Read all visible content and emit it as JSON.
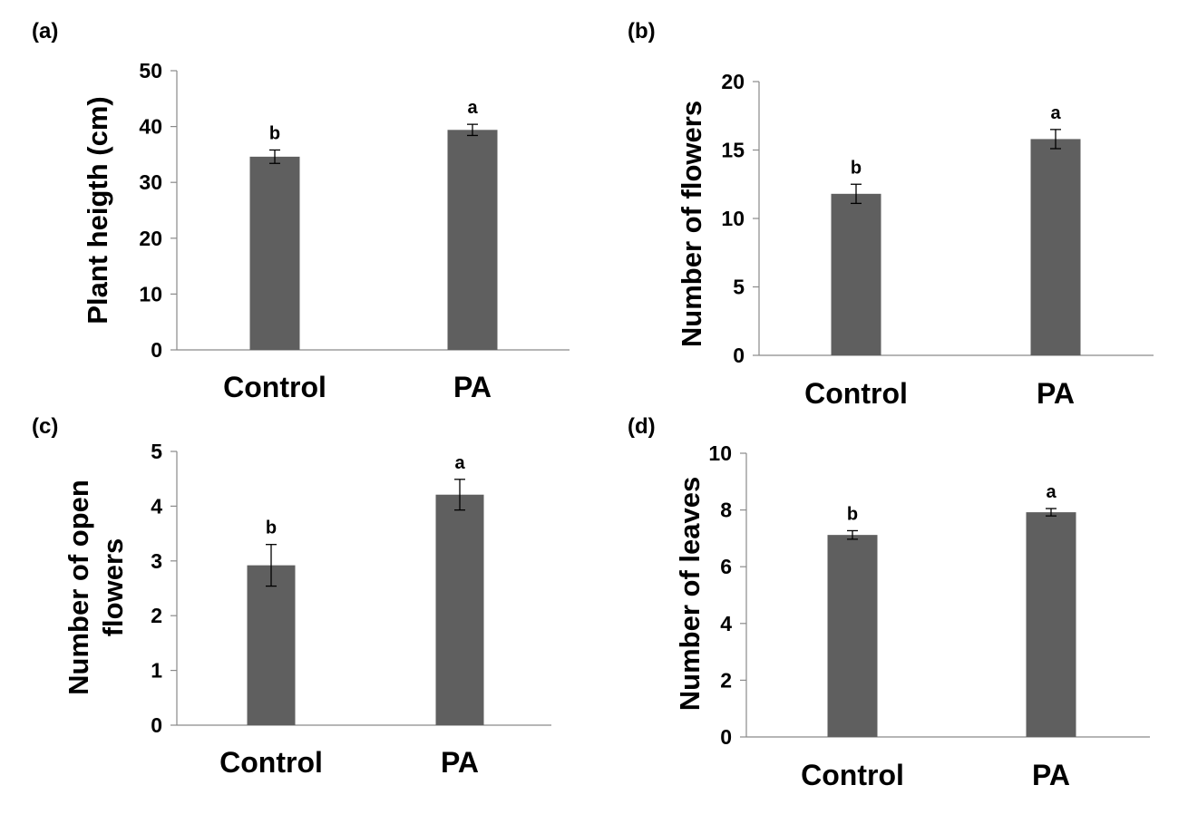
{
  "colors": {
    "bar": "#5f5f5f",
    "axis": "#8a8a8a",
    "text": "#000000",
    "background": "#ffffff"
  },
  "chart_data": [
    {
      "type": "bar",
      "panel_label": "(a)",
      "title": "",
      "xlabel": "",
      "ylabel": "Plant heigth (cm)",
      "categories": [
        "Control",
        "PA"
      ],
      "values": [
        34.6,
        39.4
      ],
      "errors": [
        1.2,
        1.0
      ],
      "significance": [
        "b",
        "a"
      ],
      "ylim": [
        0,
        50
      ],
      "yticks": [
        0,
        10,
        20,
        30,
        40,
        50
      ],
      "ytick_labels": [
        "0",
        "10",
        "20",
        "30",
        "40",
        "50"
      ],
      "grid": false,
      "legend": "none"
    },
    {
      "type": "bar",
      "panel_label": "(b)",
      "title": "",
      "xlabel": "",
      "ylabel": "Number of flowers",
      "categories": [
        "Control",
        "PA"
      ],
      "values": [
        11.8,
        15.8
      ],
      "errors": [
        0.7,
        0.7
      ],
      "significance": [
        "b",
        "a"
      ],
      "ylim": [
        0,
        20
      ],
      "yticks": [
        0,
        5,
        10,
        15,
        20
      ],
      "ytick_labels": [
        "0",
        "5",
        "10",
        "15",
        "20"
      ],
      "grid": false,
      "legend": "none"
    },
    {
      "type": "bar",
      "panel_label": "(c)",
      "title": "",
      "xlabel": "",
      "ylabel": "Number of open flowers",
      "ylabel_lines": [
        "Number of open",
        "flowers"
      ],
      "categories": [
        "Control",
        "PA"
      ],
      "values": [
        2.92,
        4.21
      ],
      "errors": [
        0.38,
        0.28
      ],
      "significance": [
        "b",
        "a"
      ],
      "ylim": [
        0,
        5
      ],
      "yticks": [
        0,
        1,
        2,
        3,
        4,
        5
      ],
      "ytick_labels": [
        "0",
        "1",
        "2",
        "3",
        "4",
        "5"
      ],
      "grid": false,
      "legend": "none"
    },
    {
      "type": "bar",
      "panel_label": "(d)",
      "title": "",
      "xlabel": "",
      "ylabel": "Number of leaves",
      "categories": [
        "Control",
        "PA"
      ],
      "values": [
        7.12,
        7.92
      ],
      "errors": [
        0.15,
        0.13
      ],
      "significance": [
        "b",
        "a"
      ],
      "ylim": [
        0,
        10
      ],
      "yticks": [
        0,
        2,
        4,
        6,
        8,
        10
      ],
      "ytick_labels": [
        "0",
        "2",
        "4",
        "6",
        "8",
        "10"
      ],
      "grid": false,
      "legend": "none"
    }
  ]
}
